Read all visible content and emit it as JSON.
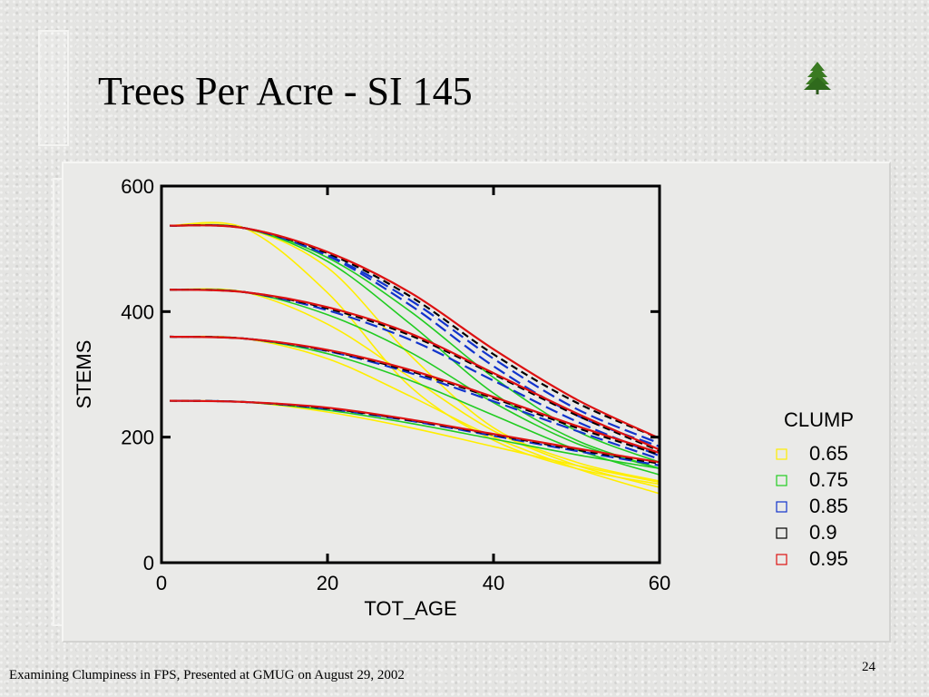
{
  "slide": {
    "title": "Trees Per Acre - SI 145",
    "footer": "Examining Clumpiness in FPS, Presented at GMUG on August 29, 2002",
    "page_number": "24"
  },
  "icons": {
    "logo": "tree-icon"
  },
  "colors": {
    "0.65": "#ffee00",
    "0.75": "#22cc22",
    "0.85": "#1133cc",
    "0.9": "#000000",
    "0.95": "#dd1111"
  },
  "chart_data": {
    "type": "line",
    "xlabel": "TOT_AGE",
    "ylabel": "STEMS",
    "xlim": [
      0,
      60
    ],
    "ylim": [
      0,
      600
    ],
    "xticks": [
      0,
      20,
      40,
      60
    ],
    "yticks": [
      0,
      200,
      400,
      600
    ],
    "legend_title": "CLUMP",
    "legend": [
      "0.65",
      "0.75",
      "0.85",
      "0.9",
      "0.95"
    ],
    "legend_position": "right",
    "groups": [
      {
        "x": [
          1,
          10,
          20,
          30,
          40,
          50,
          60
        ],
        "series": [
          {
            "name": "0.65",
            "values": [
              537,
              533,
              430,
              280,
              195,
              150,
              125
            ]
          },
          {
            "name": "0.65",
            "values": [
              537,
              533,
              470,
              330,
              215,
              160,
              130
            ]
          },
          {
            "name": "0.75",
            "values": [
              537,
              533,
              480,
              380,
              270,
              195,
              150
            ]
          },
          {
            "name": "0.75",
            "values": [
              537,
              533,
              486,
              400,
              295,
              210,
              160
            ]
          },
          {
            "name": "0.85",
            "values": [
              537,
              533,
              489,
              410,
              313,
              235,
              185
            ]
          },
          {
            "name": "0.85",
            "values": [
              537,
              533,
              490,
              418,
              325,
              245,
              190
            ]
          },
          {
            "name": "0.9",
            "values": [
              537,
              533,
              493,
              424,
              332,
              255,
              198
            ]
          },
          {
            "name": "0.95",
            "values": [
              537,
              533,
              495,
              430,
              340,
              260,
              198
            ]
          }
        ]
      },
      {
        "x": [
          1,
          10,
          20,
          30,
          40,
          50,
          60
        ],
        "series": [
          {
            "name": "0.65",
            "values": [
              435,
              431,
              380,
              295,
              210,
              155,
              120
            ]
          },
          {
            "name": "0.75",
            "values": [
              435,
              431,
              395,
              335,
              255,
              190,
              150
            ]
          },
          {
            "name": "0.85",
            "values": [
              435,
              431,
              402,
              355,
              290,
              225,
              170
            ]
          },
          {
            "name": "0.9",
            "values": [
              435,
              431,
              405,
              362,
              300,
              235,
              178
            ]
          },
          {
            "name": "0.95",
            "values": [
              435,
              431,
              407,
              365,
              302,
              238,
              180
            ]
          }
        ]
      },
      {
        "x": [
          1,
          10,
          20,
          30,
          40,
          50,
          60
        ],
        "series": [
          {
            "name": "0.65",
            "values": [
              360,
              357,
              325,
              265,
              200,
              150,
              110
            ]
          },
          {
            "name": "0.75",
            "values": [
              360,
              357,
              333,
              290,
              235,
              180,
              140
            ]
          },
          {
            "name": "0.85",
            "values": [
              360,
              357,
              337,
              302,
              257,
              210,
              165
            ]
          },
          {
            "name": "0.9",
            "values": [
              360,
              357,
              338,
              305,
              262,
              215,
              172
            ]
          },
          {
            "name": "0.95",
            "values": [
              360,
              357,
              339,
              307,
              264,
              218,
              175
            ]
          }
        ]
      },
      {
        "x": [
          1,
          10,
          20,
          30,
          40,
          50,
          60
        ],
        "series": [
          {
            "name": "0.65",
            "values": [
              258,
              256,
              240,
              215,
              185,
              155,
              128
            ]
          },
          {
            "name": "0.75",
            "values": [
              258,
              256,
              243,
              222,
              197,
              172,
              150
            ]
          },
          {
            "name": "0.85",
            "values": [
              258,
              256,
              245,
              226,
              202,
              178,
              155
            ]
          },
          {
            "name": "0.9",
            "values": [
              258,
              256,
              246,
              227,
              204,
              180,
              158
            ]
          },
          {
            "name": "0.95",
            "values": [
              258,
              256,
              247,
              228,
              205,
              182,
              160
            ]
          }
        ]
      }
    ]
  }
}
